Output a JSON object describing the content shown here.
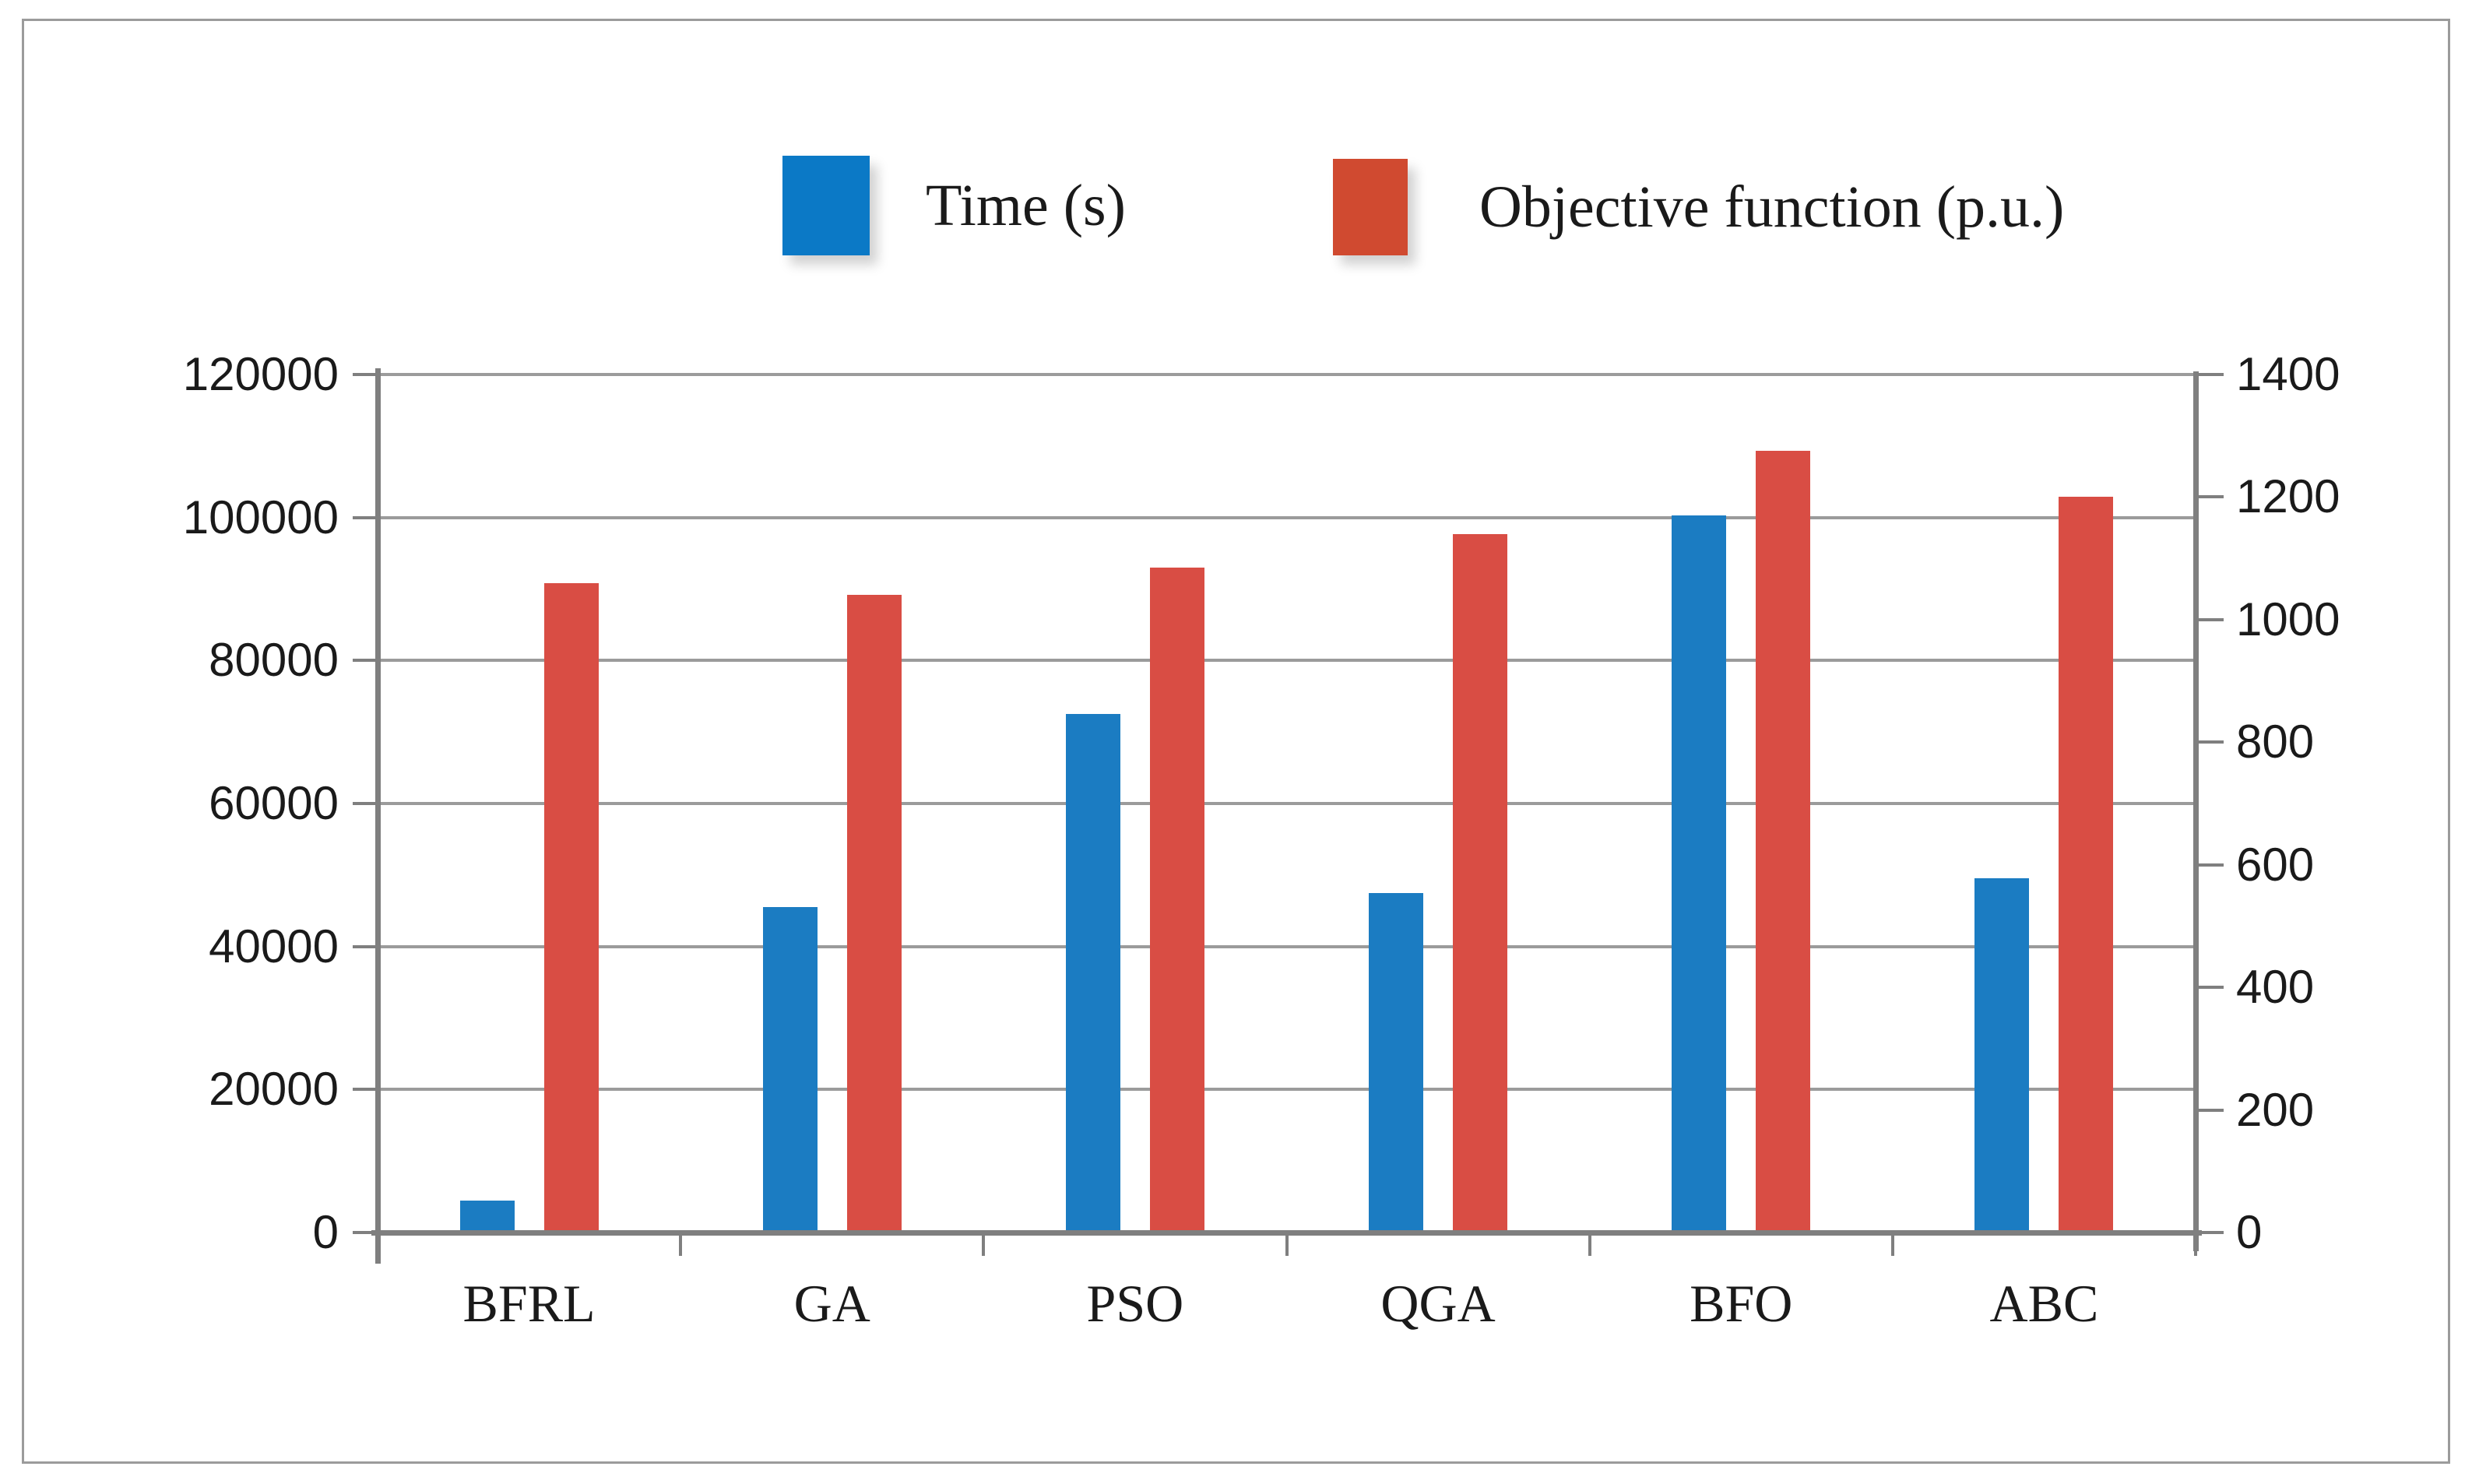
{
  "figure": {
    "background_color": "#ffffff",
    "border_color": "#9b9b9b"
  },
  "legend": {
    "items": [
      {
        "label": "Time (s)",
        "swatch_color": "#0b79c6"
      },
      {
        "label": "Objective function (p.u.)",
        "swatch_color": "#d04a30"
      }
    ]
  },
  "chart_data": {
    "type": "bar",
    "title": "",
    "categories": [
      "BFRL",
      "GA",
      "PSO",
      "QGA",
      "BFO",
      "ABC"
    ],
    "series": [
      {
        "name": "Time (s)",
        "axis": "left",
        "color": "#1b7cc2",
        "values": [
          4500,
          45500,
          72500,
          47500,
          100300,
          49500
        ]
      },
      {
        "name": "Objective function (p.u.)",
        "axis": "right",
        "color": "#d94d44",
        "values": [
          1060,
          1040,
          1085,
          1140,
          1275,
          1200
        ]
      }
    ],
    "left_axis": {
      "min": 0,
      "max": 120000,
      "step": 20000,
      "tick_labels": [
        "0",
        "20000",
        "40000",
        "60000",
        "80000",
        "100000",
        "120000"
      ]
    },
    "right_axis": {
      "min": 0,
      "max": 1400,
      "step": 200,
      "tick_labels": [
        "0",
        "200",
        "400",
        "600",
        "800",
        "1000",
        "1200",
        "1400"
      ]
    },
    "grid": "horizontal gridlines at left-axis steps",
    "legend_position": "top",
    "gridline_color": "#9b9b9b",
    "axis_color": "#7f7f7f"
  }
}
